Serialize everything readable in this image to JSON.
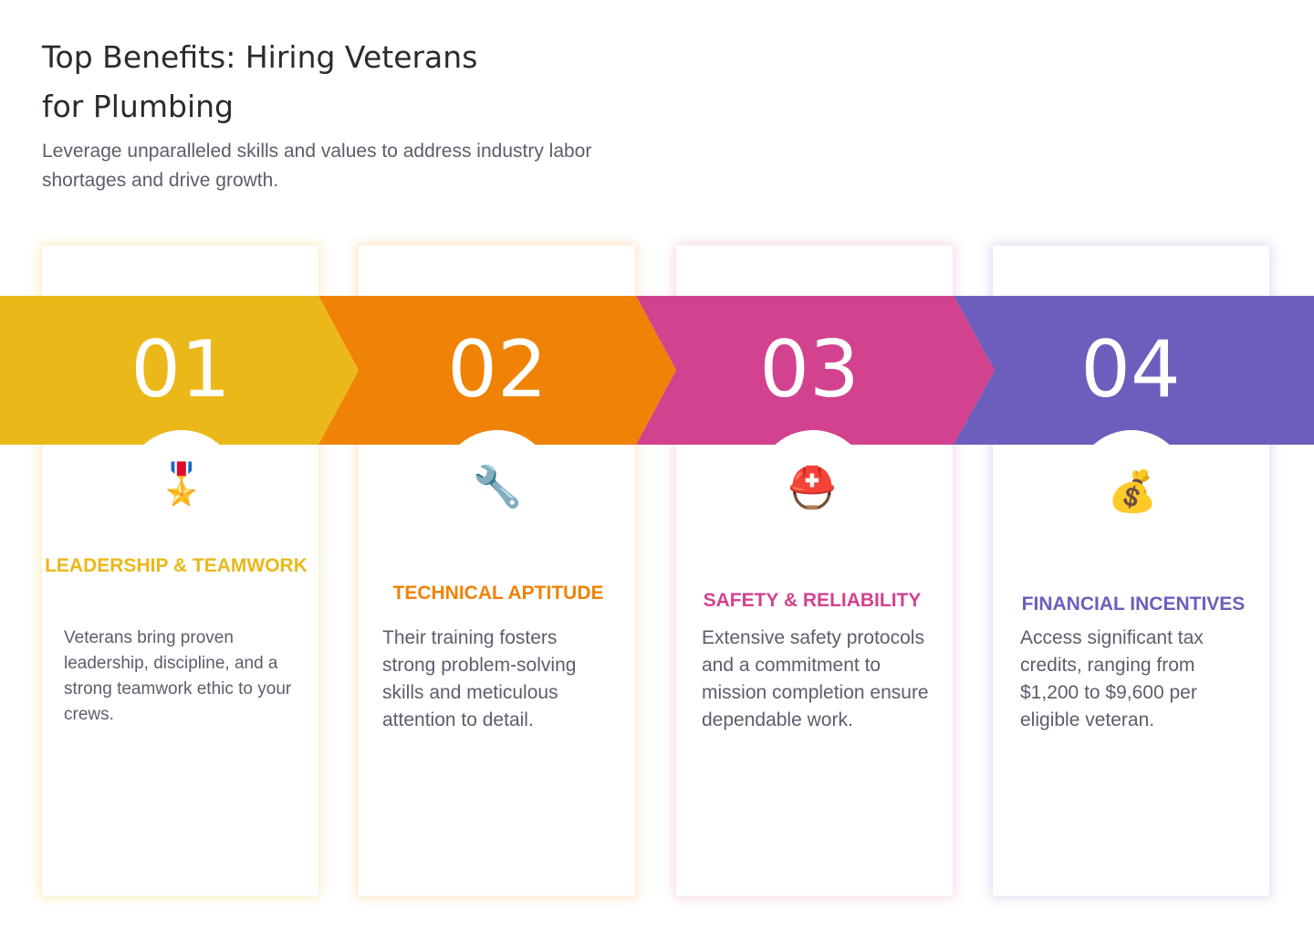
{
  "title": "Top Benefits: Hiring Veterans for Plumbing",
  "subtitle": "Leverage unparalleled skills and values to address industry labor shortages and drive growth.",
  "colors": {
    "yellow": "#ebb81a",
    "orange": "#f08205",
    "magenta": "#d2428f",
    "purple": "#6c5ebc",
    "text": "#5f5c6b"
  },
  "steps": [
    {
      "number": "01",
      "icon": "military-medal-icon",
      "icon_glyph": "🎖️",
      "heading": "LEADERSHIP & TEAMWORK",
      "text": "Veterans bring proven leadership, discipline, and a strong teamwork ethic to your crews."
    },
    {
      "number": "02",
      "icon": "wrench-icon",
      "icon_glyph": "🔧",
      "heading": "TECHNICAL APTITUDE",
      "text": "Their training fosters strong problem-solving skills and meticulous attention to detail."
    },
    {
      "number": "03",
      "icon": "rescue-helmet-icon",
      "icon_glyph": "⛑️",
      "heading": "SAFETY & RELIABILITY",
      "text": "Extensive safety protocols and a commitment to mission completion ensure dependable work."
    },
    {
      "number": "04",
      "icon": "money-bag-icon",
      "icon_glyph": "💰",
      "heading": "FINANCIAL INCENTIVES",
      "text": "Access significant tax credits, ranging from $1,200 to $9,600 per eligible veteran."
    }
  ]
}
